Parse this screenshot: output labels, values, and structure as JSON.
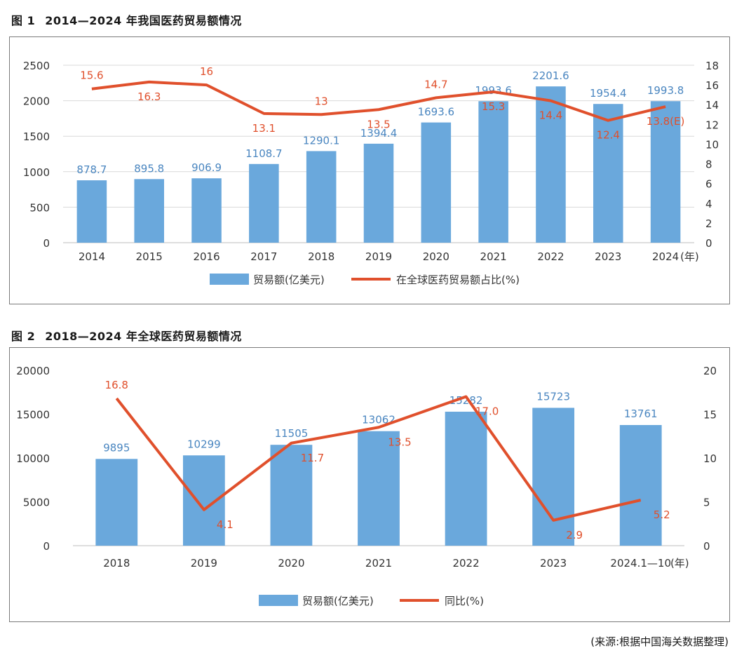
{
  "figure1": {
    "num": "图 1",
    "title": "2014—2024 年我国医药贸易额情况",
    "legend_bar": "贸易额(亿美元)",
    "legend_line": "在全球医药贸易额占比(%)"
  },
  "figure2": {
    "num": "图 2",
    "title": "2018—2024 年全球医药贸易额情况",
    "legend_bar": "贸易额(亿美元)",
    "legend_line": "同比(%)"
  },
  "source": "(来源:根据中国海关数据整理)",
  "colors": {
    "bar": "#6aa8dc",
    "line": "#e0502c",
    "bar_label": "#4a86c0",
    "line_label": "#e0502c",
    "axis_text": "#333333"
  },
  "chart_data": [
    {
      "type": "bar",
      "categories": [
        "2014",
        "2015",
        "2016",
        "2017",
        "2018",
        "2019",
        "2020",
        "2021",
        "2022",
        "2023",
        "2024"
      ],
      "x_unit_label": "(年)",
      "series": [
        {
          "name": "贸易额(亿美元)",
          "type": "bar",
          "axis": "left",
          "values": [
            878.7,
            895.8,
            906.9,
            1108.7,
            1290.1,
            1394.4,
            1693.6,
            1993.6,
            2201.6,
            1954.4,
            1993.8
          ],
          "labels": [
            "878.7",
            "895.8",
            "906.9",
            "1108.7",
            "1290.1",
            "1394.4",
            "1693.6",
            "1993.6",
            "2201.6",
            "1954.4",
            "1993.8"
          ]
        },
        {
          "name": "在全球医药贸易额占比(%)",
          "type": "line",
          "axis": "right",
          "values": [
            15.6,
            16.3,
            16,
            13.1,
            13,
            13.5,
            14.7,
            15.3,
            14.4,
            12.4,
            13.8
          ],
          "labels": [
            "15.6",
            "16.3",
            "16",
            "13.1",
            "13",
            "13.5",
            "14.7",
            "15.3",
            "14.4",
            "12.4",
            "13.8(E)"
          ],
          "label_above": [
            true,
            false,
            true,
            false,
            true,
            false,
            true,
            false,
            false,
            false,
            false
          ]
        }
      ],
      "y_left": {
        "ylim": [
          0,
          2500
        ],
        "ticks": [
          0,
          500,
          1000,
          1500,
          2000,
          2500
        ]
      },
      "y_right": {
        "ylim": [
          0,
          18
        ],
        "ticks": [
          0,
          2,
          4,
          6,
          8,
          10,
          12,
          14,
          16,
          18
        ]
      },
      "grid": true,
      "legend_position": "bottom"
    },
    {
      "type": "bar",
      "categories": [
        "2018",
        "2019",
        "2020",
        "2021",
        "2022",
        "2023",
        "2024.1—10"
      ],
      "x_unit_label": "(年)",
      "series": [
        {
          "name": "贸易额(亿美元)",
          "type": "bar",
          "axis": "left",
          "values": [
            9895,
            10299,
            11505,
            13062,
            15282,
            15723,
            13761
          ],
          "labels": [
            "9895",
            "10299",
            "11505",
            "13062",
            "15282",
            "15723",
            "13761"
          ]
        },
        {
          "name": "同比(%)",
          "type": "line",
          "axis": "right",
          "values": [
            16.8,
            4.1,
            11.7,
            13.5,
            17.0,
            2.9,
            5.2
          ],
          "labels": [
            "16.8",
            "4.1",
            "11.7",
            "13.5",
            "17.0",
            "2.9",
            "5.2"
          ],
          "label_above": [
            true,
            false,
            false,
            false,
            false,
            false,
            false
          ]
        }
      ],
      "y_left": {
        "ylim": [
          0,
          20000
        ],
        "ticks": [
          0,
          5000,
          10000,
          15000,
          20000
        ]
      },
      "y_right": {
        "ylim": [
          0,
          20
        ],
        "ticks": [
          0,
          5,
          10,
          15,
          20
        ]
      },
      "grid": false,
      "legend_position": "bottom"
    }
  ]
}
